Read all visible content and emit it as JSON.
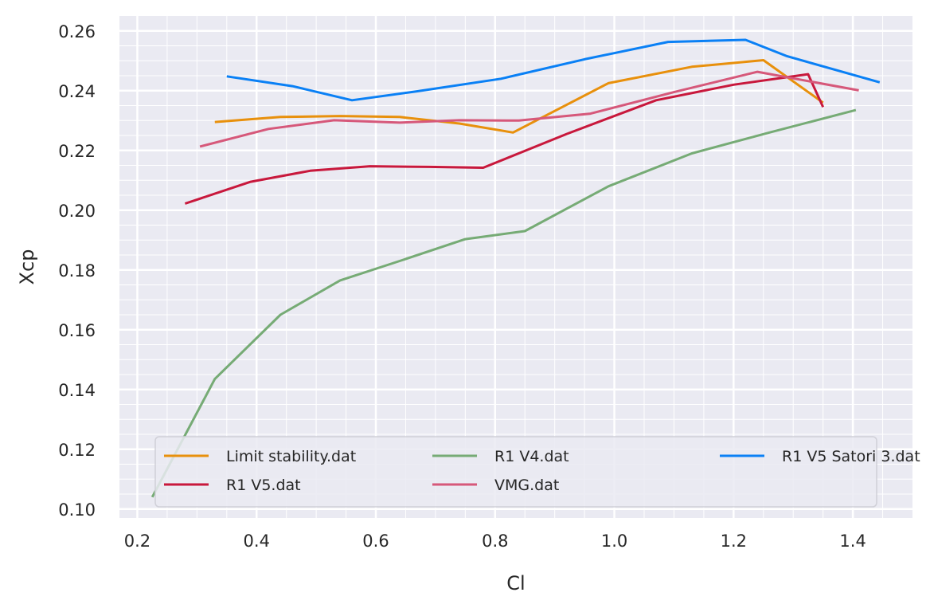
{
  "chart_data": {
    "type": "line",
    "title": "",
    "xlabel": "Cl",
    "ylabel": "Xcp",
    "xlim": [
      0.17,
      1.5
    ],
    "ylim": [
      0.097,
      0.265
    ],
    "xticks": [
      0.2,
      0.4,
      0.6,
      0.8,
      1.0,
      1.2,
      1.4
    ],
    "xtick_labels": [
      "0.2",
      "0.4",
      "0.6",
      "0.8",
      "1.0",
      "1.2",
      "1.4"
    ],
    "yticks": [
      0.1,
      0.12,
      0.14,
      0.16,
      0.18,
      0.2,
      0.22,
      0.24,
      0.26
    ],
    "ytick_labels": [
      "0.10",
      "0.12",
      "0.14",
      "0.16",
      "0.18",
      "0.20",
      "0.22",
      "0.24",
      "0.26"
    ],
    "grid": true,
    "minor_grid": true,
    "background": "#eaeaf2",
    "legend": {
      "placement": "lower-center",
      "columns": 3
    },
    "series": [
      {
        "name": "Limit stability.dat",
        "color": "#e8900c",
        "x": [
          0.33,
          0.44,
          0.54,
          0.64,
          0.74,
          0.83,
          0.99,
          1.13,
          1.25,
          1.35
        ],
        "y": [
          0.2295,
          0.2312,
          0.2315,
          0.2312,
          0.229,
          0.226,
          0.2425,
          0.248,
          0.2502,
          0.236
        ]
      },
      {
        "name": "R1 V4.dat",
        "color": "#76ab75",
        "x": [
          0.225,
          0.33,
          0.44,
          0.54,
          0.64,
          0.75,
          0.85,
          0.99,
          1.13,
          1.26,
          1.405
        ],
        "y": [
          0.104,
          0.1435,
          0.165,
          0.1765,
          0.183,
          0.1903,
          0.193,
          0.208,
          0.219,
          0.226,
          0.2335
        ]
      },
      {
        "name": "R1 V5 Satori 3.dat",
        "color": "#0a80f5",
        "x": [
          0.35,
          0.46,
          0.56,
          0.67,
          0.81,
          0.95,
          1.09,
          1.22,
          1.29,
          1.445
        ],
        "y": [
          0.2448,
          0.2415,
          0.2368,
          0.2398,
          0.244,
          0.2505,
          0.2563,
          0.257,
          0.2515,
          0.2428
        ]
      },
      {
        "name": "R1 V5.dat",
        "color": "#c8183c",
        "x": [
          0.28,
          0.39,
          0.49,
          0.59,
          0.69,
          0.78,
          0.92,
          1.07,
          1.2,
          1.325,
          1.35
        ],
        "y": [
          0.2022,
          0.2095,
          0.2132,
          0.2147,
          0.2145,
          0.2142,
          0.2255,
          0.2368,
          0.242,
          0.2455,
          0.2345
        ]
      },
      {
        "name": "VMG.dat",
        "color": "#d6587a",
        "x": [
          0.305,
          0.42,
          0.53,
          0.64,
          0.74,
          0.84,
          0.96,
          1.1,
          1.24,
          1.41
        ],
        "y": [
          0.2213,
          0.2272,
          0.2301,
          0.2293,
          0.2301,
          0.23,
          0.2323,
          0.2395,
          0.2463,
          0.2401
        ]
      }
    ]
  }
}
